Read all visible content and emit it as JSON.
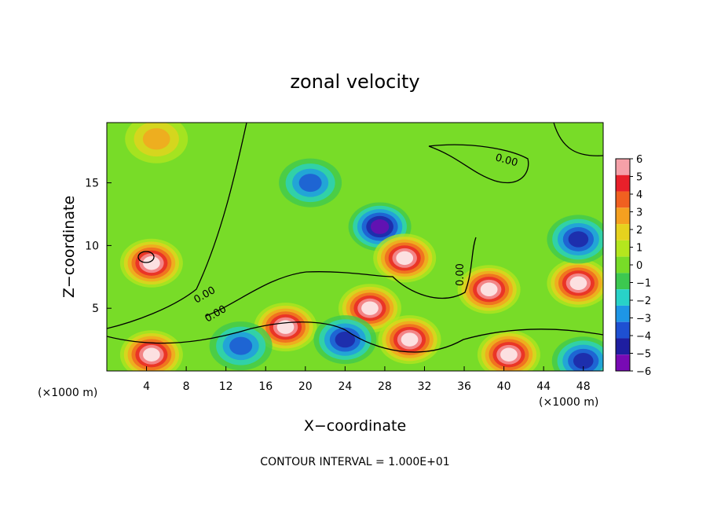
{
  "chart_data": {
    "type": "heatmap",
    "title": "zonal velocity",
    "xlabel": "X−coordinate",
    "ylabel": "Z−coordinate",
    "x_unit_label": "(×1000 m)",
    "y_unit_label": "(×1000 m)",
    "xlim": [
      0,
      50
    ],
    "ylim": [
      0,
      19.8
    ],
    "x_ticks": [
      4,
      8,
      12,
      16,
      20,
      24,
      28,
      32,
      36,
      40,
      44,
      48
    ],
    "y_ticks": [
      5,
      10,
      15
    ],
    "colorbar": {
      "ticks": [
        "6",
        "5",
        "4",
        "3",
        "2",
        "1",
        "0",
        "−1",
        "−2",
        "−3",
        "−4",
        "−5",
        "−6"
      ],
      "colors": [
        "#f5a0a8",
        "#e8202a",
        "#f06020",
        "#f5a020",
        "#e6d21e",
        "#b4e61e",
        "#78dc28",
        "#3cc850",
        "#28d2c8",
        "#1e96e6",
        "#1e50d2",
        "#1e1ea0",
        "#780ab4"
      ]
    },
    "contour_label": "0.00",
    "footer": "CONTOUR INTERVAL = 1.000E+01",
    "features": [
      {
        "kind": "max",
        "x": 4.5,
        "z": 8.6,
        "value": 6.5
      },
      {
        "kind": "max",
        "x": 5.0,
        "z": 18.5,
        "value": 3.0
      },
      {
        "kind": "min",
        "x": 20.5,
        "z": 15.0,
        "value": -4.0
      },
      {
        "kind": "min",
        "x": 27.5,
        "z": 11.5,
        "value": -5.5
      },
      {
        "kind": "max",
        "x": 30.0,
        "z": 9.0,
        "value": 6.5
      },
      {
        "kind": "max",
        "x": 38.5,
        "z": 6.5,
        "value": 6.5
      },
      {
        "kind": "max",
        "x": 47.5,
        "z": 7.0,
        "value": 6.5
      },
      {
        "kind": "min",
        "x": 47.5,
        "z": 10.5,
        "value": -4.5
      },
      {
        "kind": "max",
        "x": 26.5,
        "z": 5.0,
        "value": 6.5
      },
      {
        "kind": "max",
        "x": 18.0,
        "z": 3.5,
        "value": 6.5
      },
      {
        "kind": "max",
        "x": 30.5,
        "z": 2.5,
        "value": 6.5
      },
      {
        "kind": "min",
        "x": 24.0,
        "z": 2.5,
        "value": -5.0
      },
      {
        "kind": "max",
        "x": 4.5,
        "z": 1.3,
        "value": 6.5
      },
      {
        "kind": "max",
        "x": 40.5,
        "z": 1.3,
        "value": 6.5
      },
      {
        "kind": "min",
        "x": 13.5,
        "z": 2.0,
        "value": -4.0
      },
      {
        "kind": "min",
        "x": 48.0,
        "z": 0.8,
        "value": -4.5
      }
    ]
  }
}
